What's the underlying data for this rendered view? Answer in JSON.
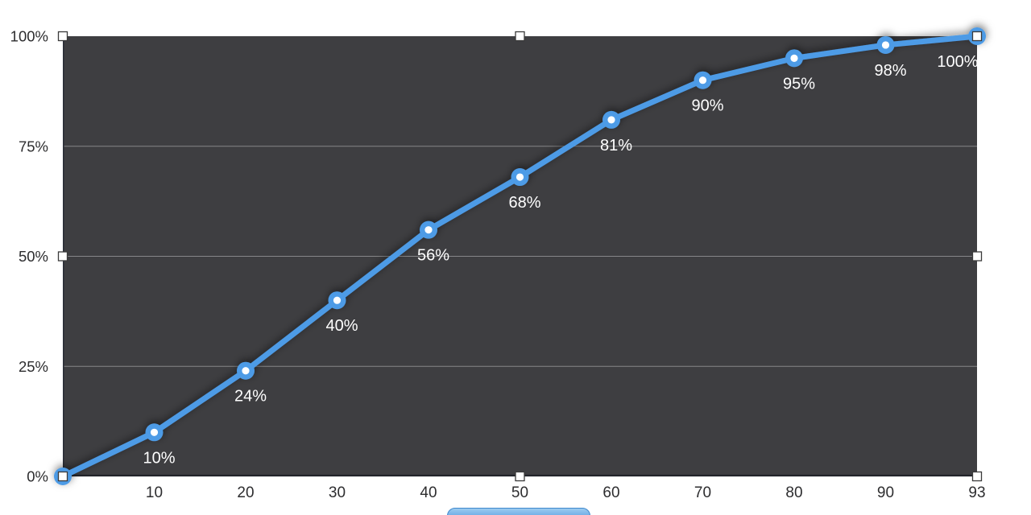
{
  "chart_data": {
    "type": "line",
    "categories": [
      "",
      "10",
      "20",
      "30",
      "40",
      "50",
      "60",
      "70",
      "80",
      "90",
      "93"
    ],
    "values": [
      0,
      10,
      24,
      40,
      56,
      68,
      81,
      90,
      95,
      98,
      100
    ],
    "point_labels": [
      "",
      "10%",
      "24%",
      "40%",
      "56%",
      "68%",
      "81%",
      "90%",
      "95%",
      "98%",
      "100%"
    ],
    "series_name": "",
    "title": "",
    "xlabel": "",
    "ylabel": "",
    "ylim": [
      0,
      100
    ],
    "y_ticks": [
      {
        "value": 0,
        "label": "0%"
      },
      {
        "value": 25,
        "label": "25%"
      },
      {
        "value": 50,
        "label": "50%"
      },
      {
        "value": 75,
        "label": "75%"
      },
      {
        "value": 100,
        "label": "100%"
      }
    ],
    "grid_values": [
      25,
      50,
      75
    ],
    "grid": true,
    "legend_position": "none",
    "colors": {
      "line": "#4D9BE6",
      "point_ring": "#4D9BE6",
      "point_center": "#FFFFFF",
      "plot_background": "#3E3E41",
      "gridline": "rgba(255,255,255,0.38)",
      "axis_text": "#2D2D2F",
      "data_label_text": "#FFFFFF",
      "axis_line_bottom": "#212329",
      "axis_line_left": "#2B2E37"
    }
  },
  "selection": {
    "selected": true,
    "handle_fill": "#FFFFFF",
    "handle_border": "#3A3A3A"
  },
  "edit_button": {
    "visible_partially": true,
    "fill_top": "#9CCBF0",
    "fill_bottom": "#4E97DE",
    "border": "#3E88CD"
  }
}
